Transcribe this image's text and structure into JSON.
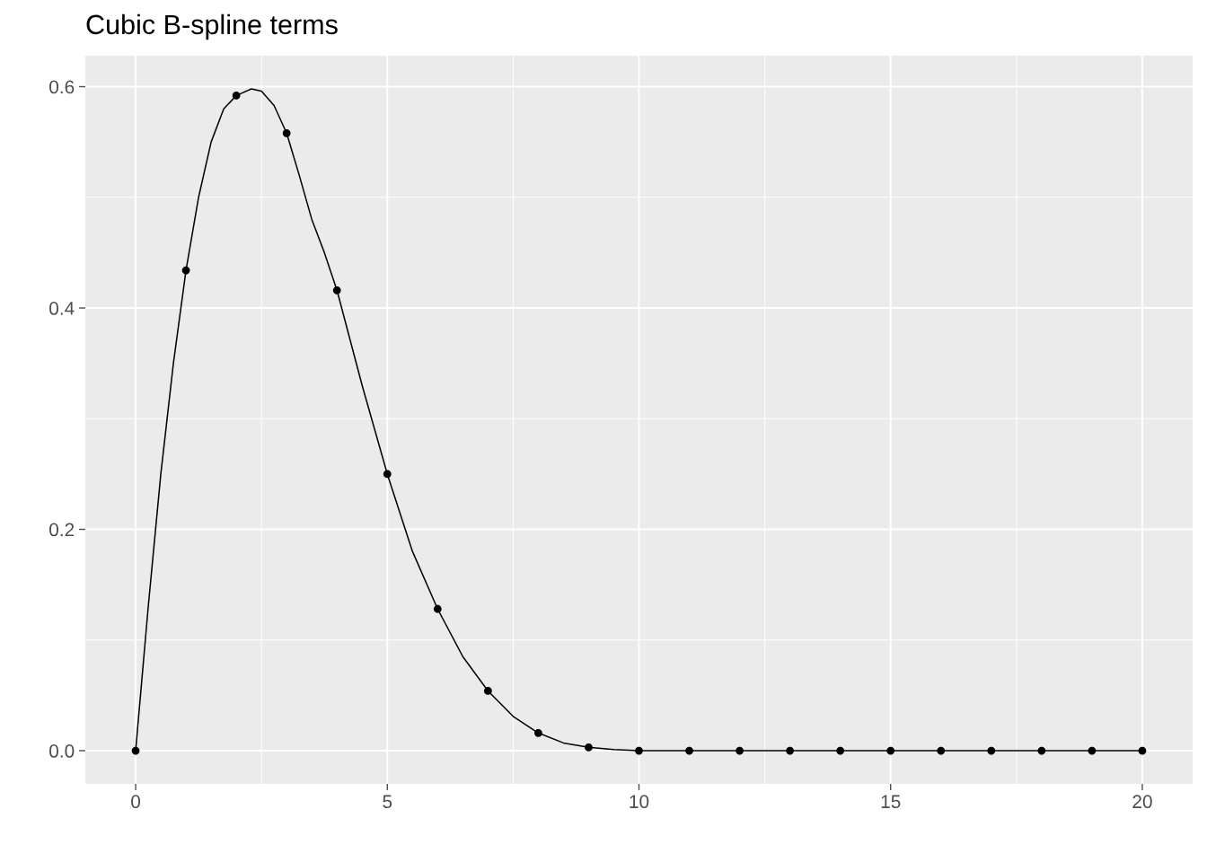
{
  "chart_data": {
    "type": "scatter",
    "title": "Cubic B-spline terms",
    "x": [
      0,
      1,
      2,
      3,
      4,
      5,
      6,
      7,
      8,
      9,
      10,
      11,
      12,
      13,
      14,
      15,
      16,
      17,
      18,
      19,
      20
    ],
    "series": [
      {
        "color": "#000000",
        "marker": "circle",
        "values": [
          0,
          0.434,
          0.592,
          0.558,
          0.416,
          0.25,
          0.128,
          0.054,
          0.016,
          0.003,
          0,
          0,
          0,
          0,
          0,
          0,
          0,
          0,
          0,
          0,
          0
        ]
      },
      {
        "type": "line",
        "color": "#000000",
        "line_style": "solid",
        "x": [
          0,
          0.25,
          0.5,
          0.75,
          1,
          1.25,
          1.5,
          1.75,
          2,
          2.3,
          2.5,
          2.75,
          3,
          3.25,
          3.5,
          3.75,
          4,
          4.5,
          5,
          5.5,
          6,
          6.5,
          7,
          7.5,
          8,
          8.5,
          9,
          9.5,
          10,
          20
        ],
        "values": [
          0,
          0.13,
          0.25,
          0.35,
          0.434,
          0.5,
          0.55,
          0.58,
          0.592,
          0.598,
          0.596,
          0.583,
          0.558,
          0.52,
          0.48,
          0.45,
          0.416,
          0.33,
          0.25,
          0.18,
          0.128,
          0.085,
          0.054,
          0.031,
          0.016,
          0.007,
          0.003,
          0.001,
          0,
          0
        ]
      }
    ],
    "xlim": [
      -1,
      21
    ],
    "xticks": [
      0,
      5,
      10,
      15,
      20
    ],
    "ylim": [
      -0.03,
      0.628
    ],
    "yticks": [
      {
        "value": 0,
        "label": "0.0"
      },
      {
        "value": 0.2,
        "label": "0.2"
      },
      {
        "value": 0.4,
        "label": "0.4"
      },
      {
        "value": 0.6,
        "label": "0.6"
      }
    ],
    "grid": true
  }
}
